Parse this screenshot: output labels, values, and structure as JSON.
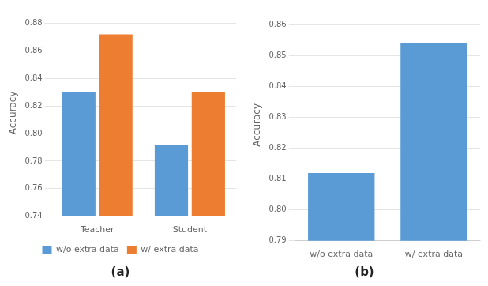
{
  "chart_data": [
    {
      "type": "bar",
      "subtitle": "(a)",
      "categories": [
        "Teacher",
        "Student"
      ],
      "series": [
        {
          "name": "w/o extra data",
          "color": "#5B9BD5",
          "values": [
            0.83,
            0.792
          ]
        },
        {
          "name": "w/ extra data",
          "color": "#ED7D31",
          "values": [
            0.872,
            0.83
          ]
        }
      ],
      "ylabel": "Accuracy",
      "ylim": [
        0.74,
        0.89
      ],
      "yticks": [
        0.74,
        0.76,
        0.78,
        {
          "value": 0.8,
          "label": "0.80"
        },
        0.82,
        0.84,
        0.86,
        0.88
      ],
      "grid": true,
      "legend": "bottom"
    },
    {
      "type": "bar",
      "subtitle": "(b)",
      "categories": [
        "w/o extra data",
        "w/ extra data"
      ],
      "values": [
        0.812,
        0.854
      ],
      "color": "#5B9BD5",
      "ylabel": "Accuracy",
      "ylim": [
        0.79,
        0.865
      ],
      "yticks": [
        0.79,
        {
          "value": 0.8,
          "label": "0.80"
        },
        0.81,
        0.82,
        0.83,
        0.84,
        0.85,
        0.86
      ],
      "grid": true
    }
  ]
}
